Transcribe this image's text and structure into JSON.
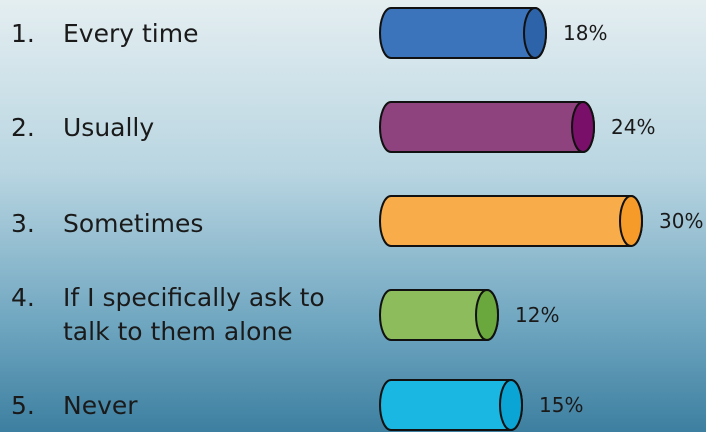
{
  "chart_data": {
    "type": "bar",
    "categories": [
      {
        "num": "1.",
        "lines": [
          "Every time"
        ]
      },
      {
        "num": "2.",
        "lines": [
          "Usually"
        ]
      },
      {
        "num": "3.",
        "lines": [
          "Sometimes"
        ]
      },
      {
        "num": "4.",
        "lines": [
          "If I specifically ask to",
          "talk to them alone"
        ]
      },
      {
        "num": "5.",
        "lines": [
          "Never"
        ]
      }
    ],
    "values": [
      18,
      24,
      30,
      12,
      15
    ],
    "value_labels": [
      "18%",
      "24%",
      "30%",
      "12%",
      "15%"
    ],
    "colors": [
      "#3b74bb",
      "#8e437e",
      "#f9ad4a",
      "#8dbc5c",
      "#19b7e1"
    ],
    "cap_colors": [
      "#2d63a9",
      "#7a0f6a",
      "#f69a2a",
      "#6aa73c",
      "#0aa5d5"
    ],
    "title": "",
    "xlabel": "",
    "ylabel": "",
    "orientation": "horizontal",
    "grid": false,
    "legend": "none"
  }
}
